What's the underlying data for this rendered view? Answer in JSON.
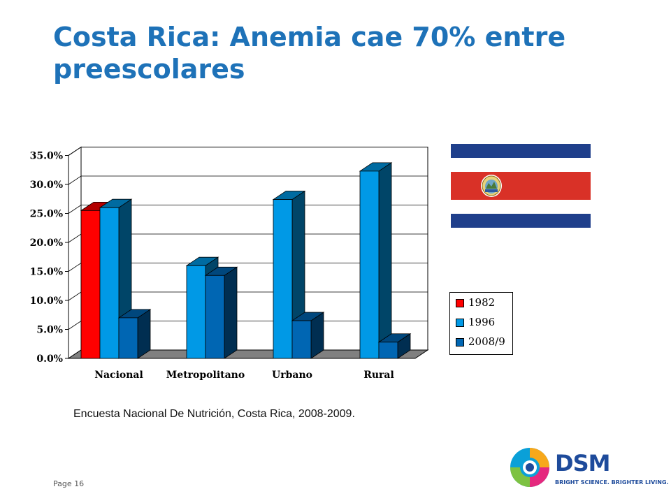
{
  "slide": {
    "title": "Costa Rica: Anemia cae 70% entre preescolares",
    "source": "Encuesta Nacional De Nutrición, Costa Rica, 2008-2009.",
    "page": "Page 16"
  },
  "logo": {
    "name": "DSM",
    "tagline": "BRIGHT SCIENCE. BRIGHTER LIVING."
  },
  "flag": {
    "name": "costa-rica-flag",
    "colors": [
      "#1f3f8b",
      "#ffffff",
      "#d93127"
    ]
  },
  "chart_data": {
    "type": "bar",
    "style": "3d-clustered",
    "categories": [
      "Nacional",
      "Metropolitano",
      "Urbano",
      "Rural"
    ],
    "series": [
      {
        "name": "1982",
        "color": "#ff0000",
        "values": [
          25.5,
          null,
          null,
          null
        ]
      },
      {
        "name": "1996",
        "color": "#0099e6",
        "values": [
          26.0,
          16.0,
          27.4,
          32.3
        ]
      },
      {
        "name": "2008/9",
        "color": "#0066b3",
        "values": [
          7.0,
          14.3,
          6.5,
          2.8
        ]
      }
    ],
    "y_ticks": [
      "0.0%",
      "5.0%",
      "10.0%",
      "15.0%",
      "20.0%",
      "25.0%",
      "30.0%",
      "35.0%"
    ],
    "ylim": [
      0,
      35
    ],
    "grid": true,
    "legend_position": "right"
  }
}
